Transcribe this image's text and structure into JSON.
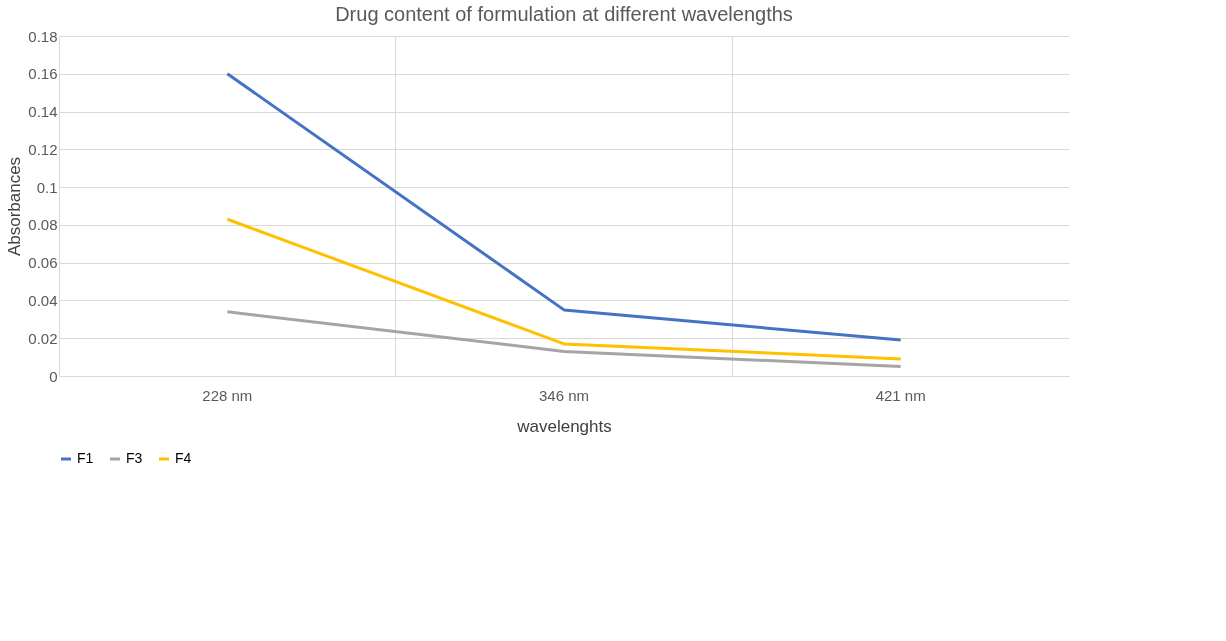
{
  "chart_data": {
    "type": "line",
    "title": "Drug content of formulation at different wavelengths",
    "xlabel": "wavelenghts",
    "ylabel": "Absorbances",
    "categories": [
      "228 nm",
      "346 nm",
      "421 nm"
    ],
    "series": [
      {
        "name": "F1",
        "color": "#4472c4",
        "values": [
          0.16,
          0.035,
          0.019
        ]
      },
      {
        "name": "F3",
        "color": "#a5a5a5",
        "values": [
          0.034,
          0.013,
          0.005
        ]
      },
      {
        "name": "F4",
        "color": "#ffc000",
        "values": [
          0.083,
          0.017,
          0.009
        ]
      }
    ],
    "ylim": [
      0,
      0.18
    ],
    "yticks": [
      0,
      0.02,
      0.04,
      0.06,
      0.08,
      0.1,
      0.12,
      0.14,
      0.16,
      0.18
    ],
    "grid": true,
    "legend": "bottom",
    "marker": "none",
    "line_style": "solid"
  }
}
